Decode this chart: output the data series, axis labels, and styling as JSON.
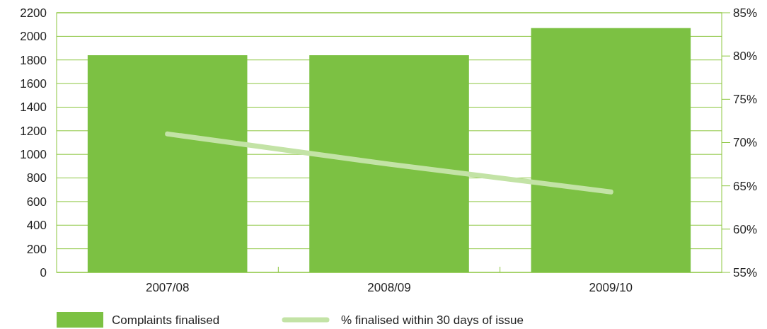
{
  "chart_data": {
    "type": "bar",
    "categories": [
      "2007/08",
      "2008/09",
      "2009/10"
    ],
    "series": [
      {
        "name": "Complaints finalised",
        "color": "#7cc143",
        "values": [
          1840,
          1840,
          2070
        ]
      },
      {
        "name": "% finalised within 30 days of issue",
        "type": "line",
        "axis": "y2",
        "color": "#c3e3a6",
        "values": [
          71,
          67.5,
          64.3
        ]
      }
    ],
    "ylim": [
      0,
      2200
    ],
    "yticks": [
      0,
      200,
      400,
      600,
      800,
      1000,
      1200,
      1400,
      1600,
      1800,
      2000,
      2200
    ],
    "y2lim": [
      55,
      85
    ],
    "y2ticks": [
      {
        "value": 55,
        "label": "55%"
      },
      {
        "value": 60,
        "label": "60%"
      },
      {
        "value": 65,
        "label": "65%"
      },
      {
        "value": 70,
        "label": "70%"
      },
      {
        "value": 75,
        "label": "75%"
      },
      {
        "value": 80,
        "label": "80%"
      },
      {
        "value": 85,
        "label": "85%"
      }
    ],
    "grid": "y",
    "legend": "bottom"
  }
}
